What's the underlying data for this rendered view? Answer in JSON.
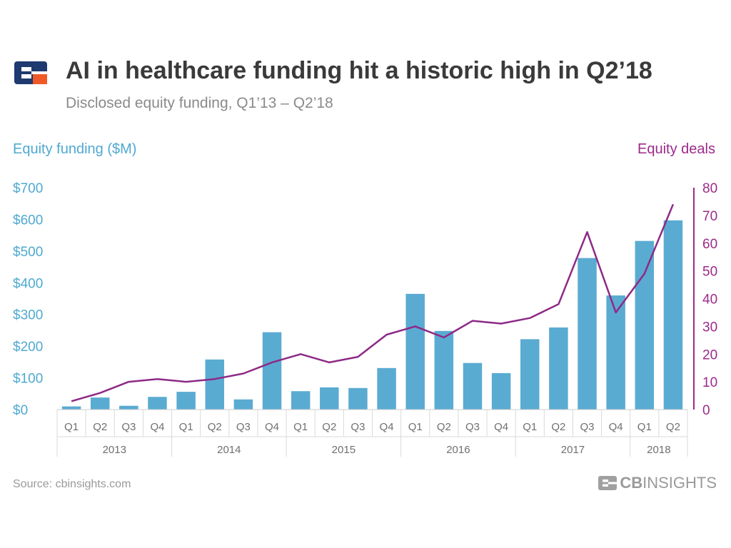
{
  "header": {
    "title": "AI in healthcare funding hit a historic high in Q2’18",
    "subtitle": "Disclosed equity funding, Q1’13  –  Q2’18"
  },
  "footer": {
    "source": "Source: cbinsights.com",
    "brand_cb": "CB",
    "brand_rest": "INSIGHTS"
  },
  "colors": {
    "bars": "#5aabd2",
    "line": "#8e2a86",
    "left_axis": "#4fa9d0",
    "right_axis": "#9c2a8a"
  },
  "chart_data": {
    "type": "bar",
    "title": "AI in healthcare funding hit a historic high in Q2’18",
    "subtitle": "Disclosed equity funding, Q1’13  –  Q2’18",
    "ylabel": "Equity funding ($M)",
    "y2label": "Equity deals",
    "categories": [
      "Q1",
      "Q2",
      "Q3",
      "Q4",
      "Q1",
      "Q2",
      "Q3",
      "Q4",
      "Q1",
      "Q2",
      "Q3",
      "Q4",
      "Q1",
      "Q2",
      "Q3",
      "Q4",
      "Q1",
      "Q2",
      "Q3",
      "Q4",
      "Q1",
      "Q2"
    ],
    "year_groups": [
      {
        "label": "2013",
        "count": 4
      },
      {
        "label": "2014",
        "count": 4
      },
      {
        "label": "2015",
        "count": 4
      },
      {
        "label": "2016",
        "count": 4
      },
      {
        "label": "2017",
        "count": 4
      },
      {
        "label": "2018",
        "count": 2
      }
    ],
    "series": [
      {
        "name": "Equity funding ($M)",
        "type": "bar",
        "axis": "left",
        "values": [
          10,
          38,
          12,
          40,
          56,
          158,
          32,
          244,
          58,
          70,
          68,
          131,
          365,
          248,
          147,
          115,
          222,
          259,
          478,
          360,
          532,
          597
        ]
      },
      {
        "name": "Equity deals",
        "type": "line",
        "axis": "right",
        "values": [
          3,
          6,
          10,
          11,
          10,
          11,
          13,
          17,
          20,
          17,
          19,
          27,
          30,
          26,
          32,
          31,
          33,
          38,
          64,
          35,
          49,
          74
        ]
      }
    ],
    "ylim": [
      0,
      700
    ],
    "y2lim": [
      0,
      80
    ],
    "yticks": [
      "$0",
      "$100",
      "$200",
      "$300",
      "$400",
      "$500",
      "$600",
      "$700"
    ],
    "y2ticks": [
      "0",
      "10",
      "20",
      "30",
      "40",
      "50",
      "60",
      "70",
      "80"
    ],
    "grid": false
  }
}
